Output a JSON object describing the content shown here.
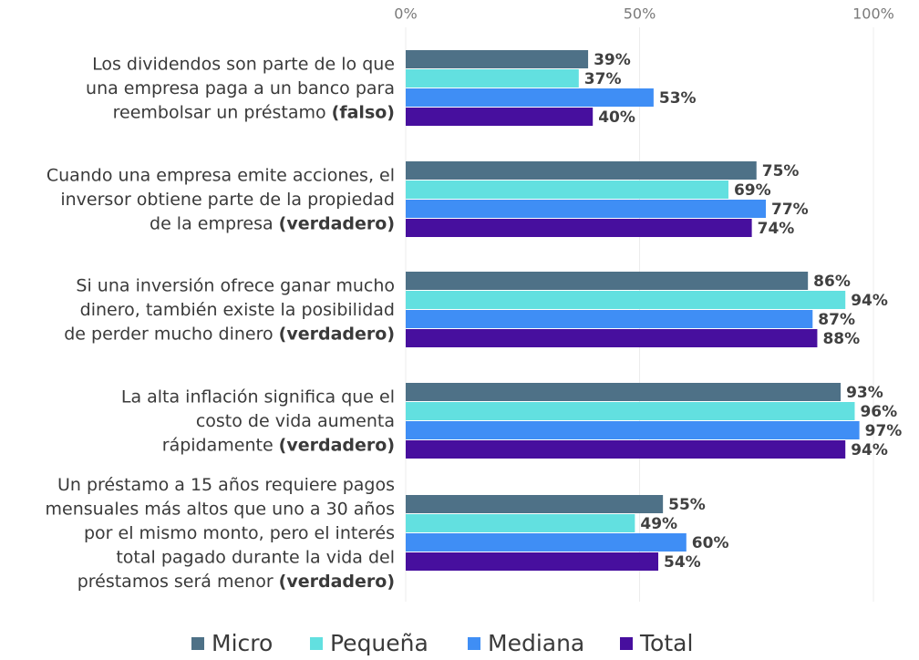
{
  "chart_data": {
    "type": "bar",
    "orientation": "horizontal",
    "categories": [
      {
        "lines": [
          "Los dividendos son parte de lo que",
          "una empresa paga a un banco para",
          "reembolsar un préstamo"
        ],
        "verdict": "(falso)"
      },
      {
        "lines": [
          "Cuando una empresa emite acciones, el",
          "inversor obtiene parte de la propiedad",
          "de la empresa"
        ],
        "verdict": "(verdadero)"
      },
      {
        "lines": [
          "Si una inversión  ofrece ganar mucho",
          "dinero, también existe la posibilidad",
          "de perder mucho dinero"
        ],
        "verdict": "(verdadero)"
      },
      {
        "lines": [
          "La alta inflación significa que el",
          "costo de vida aumenta",
          "rápidamente"
        ],
        "verdict": "(verdadero)"
      },
      {
        "lines": [
          "Un préstamo a 15 años requiere pagos",
          "mensuales más altos que uno a 30 años",
          "por el mismo monto, pero el interés",
          "total pagado durante la vida del",
          "préstamos será menor"
        ],
        "verdict": "(verdadero)"
      }
    ],
    "series": [
      {
        "name": "Micro",
        "color": "#4e7187",
        "values": [
          39,
          75,
          86,
          93,
          55
        ],
        "value_labels": [
          "39%",
          "75%",
          "86%",
          "93%",
          "55%"
        ]
      },
      {
        "name": "Pequeña",
        "color": "#62e0e0",
        "values": [
          37,
          69,
          94,
          96,
          49
        ],
        "value_labels": [
          "37%",
          "69%",
          "94%",
          "96%",
          "49%"
        ]
      },
      {
        "name": "Mediana",
        "color": "#3f8ef5",
        "values": [
          53,
          77,
          87,
          97,
          60
        ],
        "value_labels": [
          "53%",
          "77%",
          "87%",
          "97%",
          "60%"
        ]
      },
      {
        "name": "Total",
        "color": "#470f9e",
        "values": [
          40,
          74,
          88,
          94,
          54
        ],
        "value_labels": [
          "40%",
          "74%",
          "88%",
          "94%",
          "54%"
        ]
      }
    ],
    "xlim": [
      0,
      100
    ],
    "xticks": [
      {
        "value": 0,
        "label": "0%"
      },
      {
        "value": 50,
        "label": "50%"
      },
      {
        "value": 100,
        "label": "100%"
      }
    ],
    "grid": true,
    "legend": "bottom"
  }
}
